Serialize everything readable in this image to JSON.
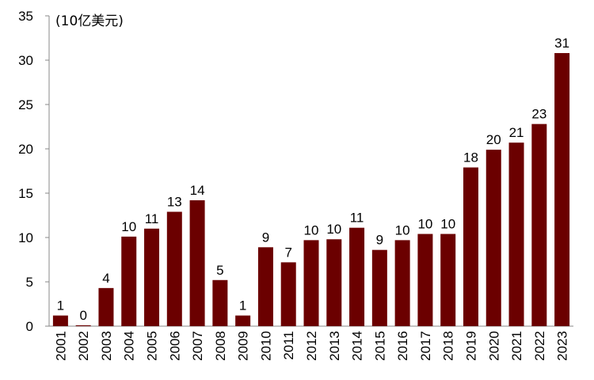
{
  "chart_data": {
    "type": "bar",
    "categories": [
      "2001",
      "2002",
      "2003",
      "2004",
      "2005",
      "2006",
      "2007",
      "2008",
      "2009",
      "2010",
      "2011",
      "2012",
      "2013",
      "2014",
      "2015",
      "2016",
      "2017",
      "2018",
      "2019",
      "2020",
      "2021",
      "2022",
      "2023"
    ],
    "values": [
      1.2,
      0.1,
      4.3,
      10.1,
      11.0,
      12.9,
      14.2,
      5.2,
      1.2,
      8.9,
      7.2,
      9.7,
      9.8,
      11.1,
      8.6,
      9.7,
      10.4,
      10.4,
      17.9,
      19.9,
      20.7,
      22.8,
      30.8
    ],
    "value_labels": [
      "1",
      "0",
      "4",
      "10",
      "11",
      "13",
      "14",
      "5",
      "1",
      "9",
      "7",
      "10",
      "10",
      "11",
      "9",
      "10",
      "10",
      "10",
      "18",
      "20",
      "21",
      "23",
      "31"
    ],
    "unit_label": "(10亿美元)",
    "ylim": [
      0,
      35
    ],
    "yticks": [
      0,
      5,
      10,
      15,
      20,
      25,
      30,
      35
    ],
    "grid": false,
    "bar_color": "#6b0000"
  }
}
